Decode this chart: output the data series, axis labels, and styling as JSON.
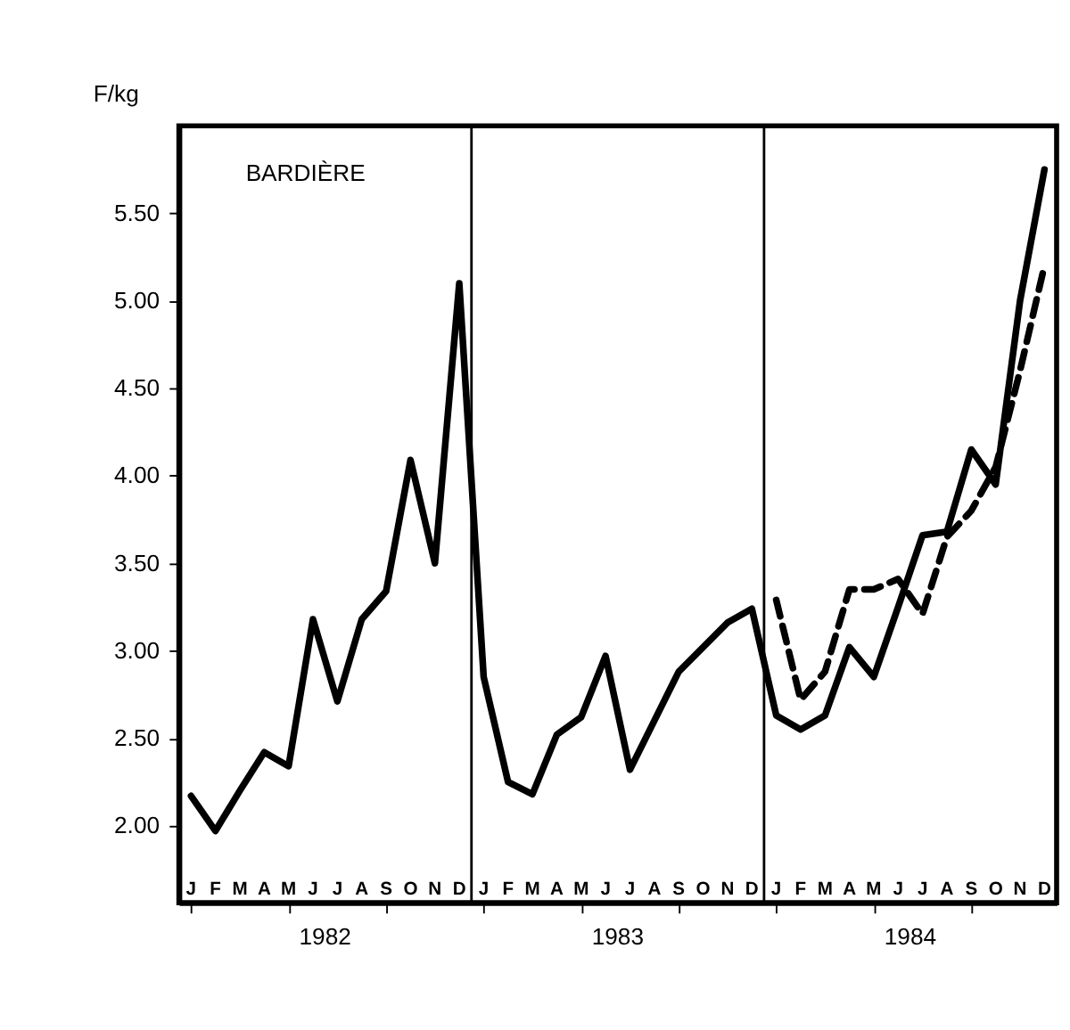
{
  "chart_data": {
    "type": "line",
    "title": "BARDIÈRE",
    "ylabel": "F/kg",
    "categories": [
      "J",
      "F",
      "M",
      "A",
      "M",
      "J",
      "J",
      "A",
      "S",
      "O",
      "N",
      "D",
      "J",
      "F",
      "M",
      "A",
      "M",
      "J",
      "J",
      "A",
      "S",
      "O",
      "N",
      "D",
      "J",
      "F",
      "M",
      "A",
      "M",
      "J",
      "J",
      "A",
      "S",
      "O",
      "N",
      "D"
    ],
    "series": [
      {
        "color": "#000000",
        "line_style": "solid",
        "values": [
          2.17,
          1.97,
          2.2,
          2.42,
          2.34,
          3.18,
          2.71,
          3.18,
          3.34,
          4.09,
          3.5,
          5.1,
          2.85,
          2.25,
          2.18,
          2.52,
          2.62,
          2.97,
          2.32,
          2.6,
          2.88,
          3.02,
          3.16,
          3.24,
          2.63,
          2.55,
          2.63,
          3.02,
          2.85,
          3.25,
          3.66,
          3.68,
          4.15,
          3.95,
          5.0,
          5.75
        ]
      },
      {
        "color": "#000000",
        "line_style": "dashed",
        "values": [
          null,
          null,
          null,
          null,
          null,
          null,
          null,
          null,
          null,
          null,
          null,
          null,
          null,
          null,
          null,
          null,
          null,
          null,
          null,
          null,
          null,
          null,
          null,
          null,
          3.29,
          2.72,
          2.88,
          3.35,
          3.35,
          3.41,
          3.21,
          3.65,
          3.8,
          4.05,
          4.6,
          5.2
        ]
      }
    ],
    "ylim": [
      1.56,
      6.0
    ],
    "yticks": [
      {
        "value": 2,
        "label": "2.00"
      },
      {
        "value": 2.5,
        "label": "2.50"
      },
      {
        "value": 3,
        "label": "3.00"
      },
      {
        "value": 3.5,
        "label": "3.50"
      },
      {
        "value": 4,
        "label": "4.00"
      },
      {
        "value": 4.5,
        "label": "4.50"
      },
      {
        "value": 5,
        "label": "5.00"
      },
      {
        "value": 5.5,
        "label": "5.50"
      }
    ],
    "annotations": [
      "1982",
      "1983",
      "1984"
    ],
    "grid": false,
    "marker": "none"
  }
}
